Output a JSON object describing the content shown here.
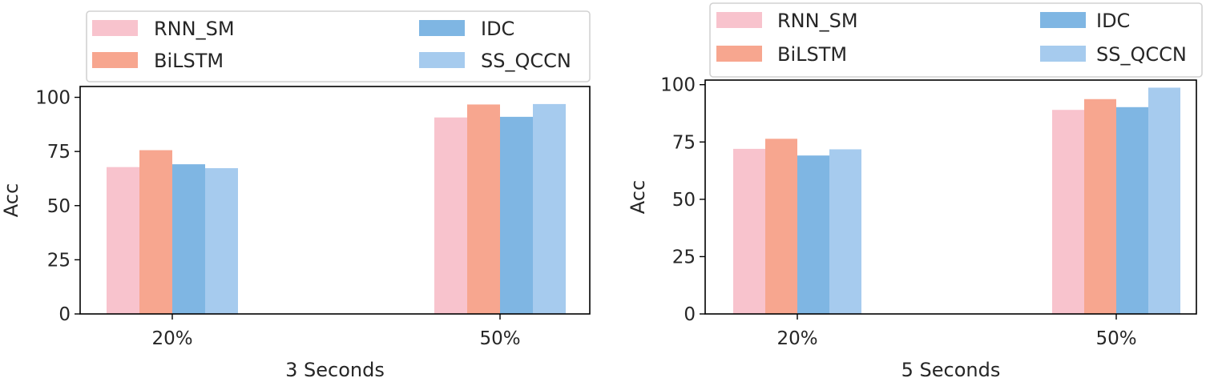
{
  "chart_data": [
    {
      "type": "bar",
      "categories": [
        "20%",
        "50%"
      ],
      "xlabel": "3 Seconds",
      "ylabel": "Acc",
      "ylim": [
        0,
        105
      ],
      "yticks": [
        "0",
        "25",
        "50",
        "75",
        "100"
      ],
      "legend_position": "top",
      "series": [
        {
          "name": "RNN_SM",
          "color": "#f8c3cd",
          "values": [
            67.8,
            90.7
          ]
        },
        {
          "name": "BiLSTM",
          "color": "#f7a68f",
          "values": [
            75.6,
            96.7
          ]
        },
        {
          "name": "IDC",
          "color": "#7fb6e3",
          "values": [
            69.1,
            91.0
          ]
        },
        {
          "name": "SS_QCCN",
          "color": "#a6cbee",
          "values": [
            67.3,
            96.9
          ]
        }
      ]
    },
    {
      "type": "bar",
      "categories": [
        "20%",
        "50%"
      ],
      "xlabel": "5 Seconds",
      "ylabel": "Acc",
      "ylim": [
        0,
        102
      ],
      "yticks": [
        "0",
        "25",
        "50",
        "75",
        "100"
      ],
      "legend_position": "top",
      "series": [
        {
          "name": "RNN_SM",
          "color": "#f8c3cd",
          "values": [
            72.0,
            89.0
          ]
        },
        {
          "name": "BiLSTM",
          "color": "#f7a68f",
          "values": [
            76.4,
            93.7
          ]
        },
        {
          "name": "IDC",
          "color": "#7fb6e3",
          "values": [
            69.1,
            90.2
          ]
        },
        {
          "name": "SS_QCCN",
          "color": "#a6cbee",
          "values": [
            71.8,
            98.7
          ]
        }
      ]
    }
  ]
}
